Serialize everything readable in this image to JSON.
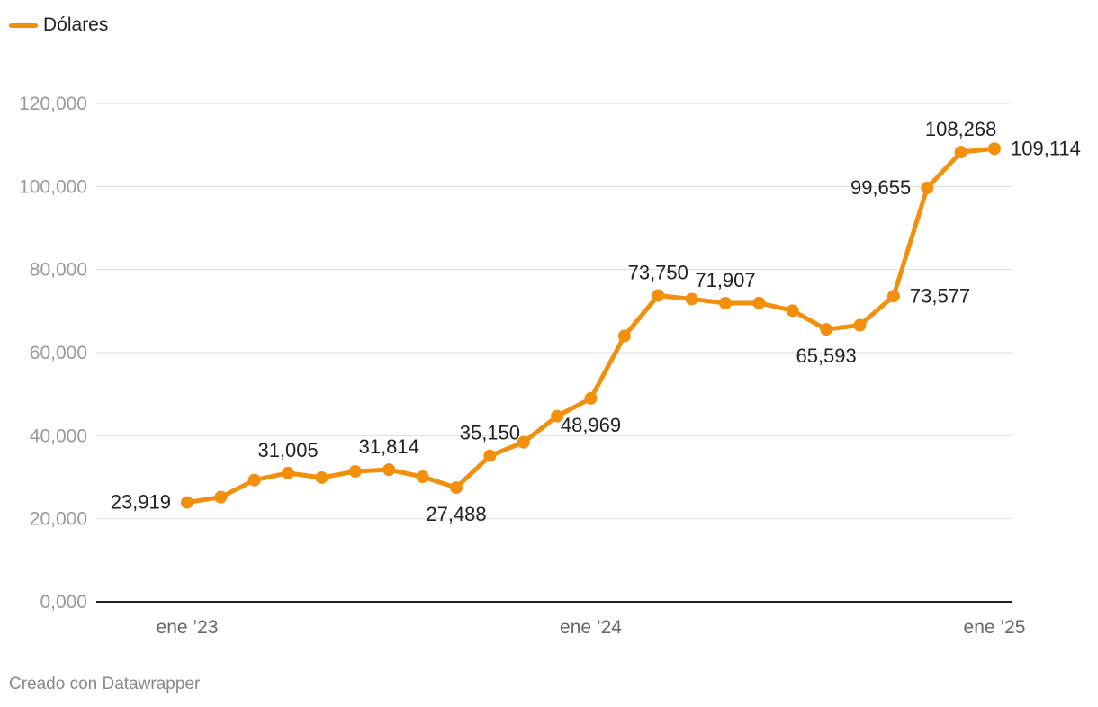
{
  "legend": {
    "label": "Dólares",
    "color": "#f28f0c"
  },
  "footer": {
    "credit": "Creado con Datawrapper"
  },
  "chart_data": {
    "type": "line",
    "title": "",
    "xlabel": "",
    "ylabel": "",
    "ylim": [
      0,
      120000
    ],
    "yticks": [
      0,
      20000,
      40000,
      60000,
      80000,
      100000,
      120000
    ],
    "ytick_labels": [
      "0,000",
      "20,000",
      "40,000",
      "60,000",
      "80,000",
      "100,000",
      "120,000"
    ],
    "xticks": [
      {
        "date": "2023-01",
        "label": "ene ’23"
      },
      {
        "date": "2024-01",
        "label": "ene ’24"
      },
      {
        "date": "2025-01",
        "label": "ene ’25"
      }
    ],
    "grid": true,
    "legend_position": "top-left",
    "series": [
      {
        "name": "Dólares",
        "color": "#f28f0c",
        "x": [
          "2023-01",
          "2023-02",
          "2023-03",
          "2023-04",
          "2023-05",
          "2023-06",
          "2023-07",
          "2023-08",
          "2023-09",
          "2023-10",
          "2023-11",
          "2023-12",
          "2024-01",
          "2024-02",
          "2024-03",
          "2024-04",
          "2024-05",
          "2024-06",
          "2024-07",
          "2024-08",
          "2024-09",
          "2024-10",
          "2024-11",
          "2024-12",
          "2025-01"
        ],
        "values": [
          23919,
          25200,
          29300,
          31005,
          29900,
          31400,
          31814,
          30100,
          27488,
          35150,
          38400,
          44700,
          48969,
          64000,
          73750,
          72900,
          71907,
          71950,
          70100,
          65593,
          66600,
          73577,
          99655,
          108268,
          109114
        ]
      }
    ],
    "data_labels": [
      {
        "index": 0,
        "text": "23,919",
        "pos": "left"
      },
      {
        "index": 3,
        "text": "31,005",
        "pos": "above"
      },
      {
        "index": 6,
        "text": "31,814",
        "pos": "above"
      },
      {
        "index": 8,
        "text": "27,488",
        "pos": "below"
      },
      {
        "index": 9,
        "text": "35,150",
        "pos": "above"
      },
      {
        "index": 12,
        "text": "48,969",
        "pos": "below"
      },
      {
        "index": 14,
        "text": "73,750",
        "pos": "above"
      },
      {
        "index": 16,
        "text": "71,907",
        "pos": "above"
      },
      {
        "index": 19,
        "text": "65,593",
        "pos": "below"
      },
      {
        "index": 21,
        "text": "73,577",
        "pos": "right"
      },
      {
        "index": 22,
        "text": "99,655",
        "pos": "left"
      },
      {
        "index": 23,
        "text": "108,268",
        "pos": "above"
      },
      {
        "index": 24,
        "text": "109,114",
        "pos": "right"
      }
    ]
  }
}
